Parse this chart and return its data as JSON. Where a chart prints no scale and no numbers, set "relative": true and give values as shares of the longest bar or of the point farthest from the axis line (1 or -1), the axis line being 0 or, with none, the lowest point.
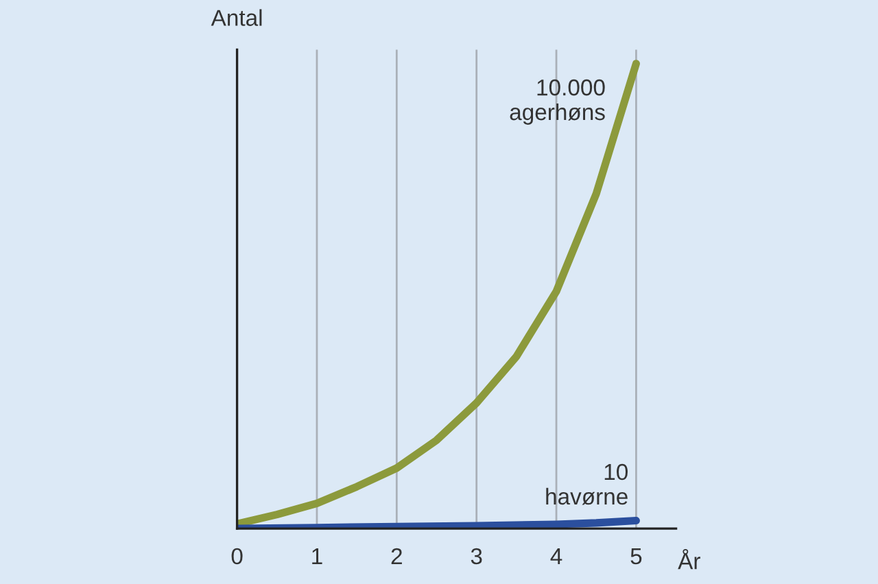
{
  "chart_data": {
    "type": "line",
    "relative": true,
    "xlabel": "År",
    "ylabel": "Antal",
    "xlim": [
      0,
      5.5
    ],
    "xticks": [
      0,
      1,
      2,
      3,
      4,
      5
    ],
    "grid": "x",
    "legend": false,
    "marker": "none",
    "line_style": "solid",
    "series": [
      {
        "color": "#8c9a3c",
        "x": [
          0,
          0.5,
          1,
          1.5,
          2,
          2.5,
          3,
          3.5,
          4,
          4.5,
          5
        ],
        "values": [
          0.01,
          0.03,
          0.054,
          0.09,
          0.13,
          0.19,
          0.27,
          0.37,
          0.51,
          0.72,
          1
        ]
      },
      {
        "color": "#2b4f9e",
        "x": [
          0,
          1,
          2,
          3,
          4,
          4.5,
          5
        ],
        "values": [
          0,
          0.002,
          0.004,
          0.006,
          0.009,
          0.012,
          0.017
        ]
      }
    ],
    "annotations": [
      {
        "text": "10.000\nagerhøns",
        "x": 5,
        "y": 1
      },
      {
        "text": "10\nhavørne",
        "x": 5,
        "y": 0.017
      }
    ]
  }
}
